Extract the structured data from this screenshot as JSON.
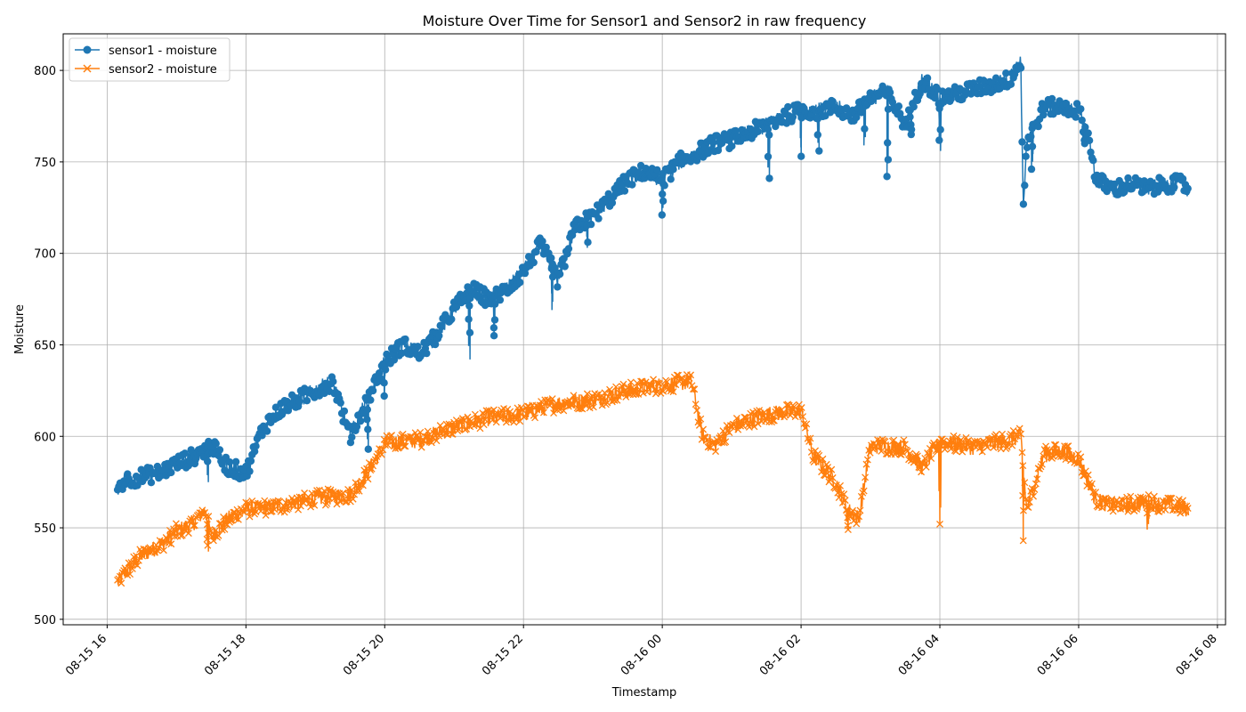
{
  "chart_data": {
    "type": "line",
    "title": "Moisture Over Time for Sensor1 and Sensor2 in raw frequency",
    "xlabel": "Timestamp",
    "ylabel": "Moisture",
    "grid": true,
    "legend_position": "top-left",
    "x_axis": {
      "type": "datetime",
      "range": [
        "2024-08-15T15:22",
        "2024-08-16T08:07"
      ],
      "tick_values": [
        "2024-08-15T16:00",
        "2024-08-15T18:00",
        "2024-08-15T20:00",
        "2024-08-15T22:00",
        "2024-08-16T00:00",
        "2024-08-16T02:00",
        "2024-08-16T04:00",
        "2024-08-16T06:00",
        "2024-08-16T08:00"
      ],
      "tick_labels": [
        "08-15 16",
        "08-15 18",
        "08-15 20",
        "08-15 22",
        "08-16 00",
        "08-16 02",
        "08-16 04",
        "08-16 06",
        "08-16 08"
      ]
    },
    "y_axis": {
      "range": [
        497,
        820
      ],
      "ticks": [
        500,
        550,
        600,
        650,
        700,
        750,
        800
      ],
      "tick_labels": [
        "500",
        "550",
        "600",
        "650",
        "700",
        "750",
        "800"
      ]
    },
    "series": [
      {
        "name": "sensor1 - moisture",
        "color": "#1f77b4",
        "marker": "circle",
        "x": [
          "2024-08-15T16:09",
          "2024-08-15T16:15",
          "2024-08-15T16:30",
          "2024-08-15T16:45",
          "2024-08-15T17:00",
          "2024-08-15T17:15",
          "2024-08-15T17:30",
          "2024-08-15T17:45",
          "2024-08-15T18:00",
          "2024-08-15T18:15",
          "2024-08-15T18:30",
          "2024-08-15T18:45",
          "2024-08-15T19:00",
          "2024-08-15T19:15",
          "2024-08-15T19:30",
          "2024-08-15T19:45",
          "2024-08-15T20:00",
          "2024-08-15T20:15",
          "2024-08-15T20:30",
          "2024-08-15T20:45",
          "2024-08-15T21:00",
          "2024-08-15T21:15",
          "2024-08-15T21:30",
          "2024-08-15T21:45",
          "2024-08-15T22:00",
          "2024-08-15T22:15",
          "2024-08-15T22:30",
          "2024-08-15T22:45",
          "2024-08-15T23:00",
          "2024-08-15T23:15",
          "2024-08-15T23:30",
          "2024-08-15T23:45",
          "2024-08-16T00:00",
          "2024-08-16T00:15",
          "2024-08-16T00:30",
          "2024-08-16T00:45",
          "2024-08-16T01:00",
          "2024-08-16T01:15",
          "2024-08-16T01:30",
          "2024-08-16T01:45",
          "2024-08-16T02:00",
          "2024-08-16T02:15",
          "2024-08-16T02:30",
          "2024-08-16T02:45",
          "2024-08-16T03:00",
          "2024-08-16T03:15",
          "2024-08-16T03:30",
          "2024-08-16T03:45",
          "2024-08-16T04:00",
          "2024-08-16T04:15",
          "2024-08-16T04:30",
          "2024-08-16T04:45",
          "2024-08-16T05:00",
          "2024-08-16T05:10",
          "2024-08-16T05:12",
          "2024-08-16T05:15",
          "2024-08-16T05:30",
          "2024-08-16T05:45",
          "2024-08-16T06:00",
          "2024-08-16T06:10",
          "2024-08-16T06:15",
          "2024-08-16T06:30",
          "2024-08-16T06:45",
          "2024-08-16T07:00",
          "2024-08-16T07:15",
          "2024-08-16T07:30",
          "2024-08-16T07:35"
        ],
        "y": [
          572,
          576,
          578,
          580,
          585,
          589,
          595,
          583,
          580,
          605,
          615,
          620,
          625,
          630,
          600,
          620,
          640,
          650,
          645,
          655,
          670,
          680,
          675,
          680,
          690,
          705,
          685,
          715,
          720,
          730,
          740,
          745,
          740,
          750,
          755,
          760,
          762,
          766,
          770,
          775,
          778,
          778,
          780,
          775,
          785,
          788,
          770,
          795,
          785,
          787,
          790,
          792,
          795,
          805,
          725,
          760,
          780,
          780,
          778,
          760,
          740,
          735,
          738,
          735,
          738,
          738,
          735
        ],
        "dips": [
          {
            "x": "2024-08-15T17:27",
            "low": 575
          },
          {
            "x": "2024-08-15T19:45",
            "low": 593
          },
          {
            "x": "2024-08-15T20:00",
            "low": 622
          },
          {
            "x": "2024-08-15T21:13",
            "low": 642
          },
          {
            "x": "2024-08-15T21:35",
            "low": 655
          },
          {
            "x": "2024-08-15T22:25",
            "low": 669
          },
          {
            "x": "2024-08-15T22:55",
            "low": 703
          },
          {
            "x": "2024-08-16T00:00",
            "low": 721
          },
          {
            "x": "2024-08-16T01:32",
            "low": 741
          },
          {
            "x": "2024-08-16T02:00",
            "low": 753
          },
          {
            "x": "2024-08-16T02:15",
            "low": 756
          },
          {
            "x": "2024-08-16T02:55",
            "low": 759
          },
          {
            "x": "2024-08-16T03:15",
            "low": 742
          },
          {
            "x": "2024-08-16T03:35",
            "low": 765
          },
          {
            "x": "2024-08-16T04:00",
            "low": 756
          },
          {
            "x": "2024-08-16T05:20",
            "low": 746
          },
          {
            "x": "2024-08-16T06:05",
            "low": 760
          }
        ]
      },
      {
        "name": "sensor2 - moisture",
        "color": "#ff7f0e",
        "marker": "x",
        "x": [
          "2024-08-15T16:09",
          "2024-08-15T16:15",
          "2024-08-15T16:30",
          "2024-08-15T16:45",
          "2024-08-15T17:00",
          "2024-08-15T17:15",
          "2024-08-15T17:25",
          "2024-08-15T17:30",
          "2024-08-15T17:45",
          "2024-08-15T18:00",
          "2024-08-15T18:30",
          "2024-08-15T19:00",
          "2024-08-15T19:30",
          "2024-08-15T19:45",
          "2024-08-15T20:00",
          "2024-08-15T20:30",
          "2024-08-15T21:00",
          "2024-08-15T21:30",
          "2024-08-15T22:00",
          "2024-08-15T22:30",
          "2024-08-15T23:00",
          "2024-08-15T23:30",
          "2024-08-16T00:00",
          "2024-08-16T00:25",
          "2024-08-16T00:35",
          "2024-08-16T00:45",
          "2024-08-16T01:00",
          "2024-08-16T01:30",
          "2024-08-16T02:00",
          "2024-08-16T02:10",
          "2024-08-16T02:30",
          "2024-08-16T02:40",
          "2024-08-16T02:50",
          "2024-08-16T03:00",
          "2024-08-16T03:30",
          "2024-08-16T03:45",
          "2024-08-16T04:00",
          "2024-08-16T04:30",
          "2024-08-16T05:00",
          "2024-08-16T05:10",
          "2024-08-16T05:15",
          "2024-08-16T05:30",
          "2024-08-16T05:45",
          "2024-08-16T06:00",
          "2024-08-16T06:15",
          "2024-08-16T06:30",
          "2024-08-16T07:00",
          "2024-08-16T07:30",
          "2024-08-16T07:35"
        ],
        "y": [
          520,
          525,
          535,
          540,
          548,
          553,
          560,
          545,
          555,
          560,
          562,
          566,
          568,
          580,
          596,
          598,
          605,
          610,
          612,
          618,
          620,
          625,
          628,
          630,
          600,
          595,
          605,
          612,
          614,
          590,
          575,
          560,
          555,
          595,
          594,
          583,
          597,
          594,
          598,
          600,
          560,
          590,
          592,
          588,
          565,
          562,
          564,
          561,
          560
        ],
        "dips": [
          {
            "x": "2024-08-15T17:27",
            "low": 537
          },
          {
            "x": "2024-08-16T02:40",
            "low": 549
          },
          {
            "x": "2024-08-16T04:00",
            "low": 552
          },
          {
            "x": "2024-08-16T05:12",
            "low": 543
          },
          {
            "x": "2024-08-16T07:00",
            "low": 549
          }
        ]
      }
    ]
  }
}
